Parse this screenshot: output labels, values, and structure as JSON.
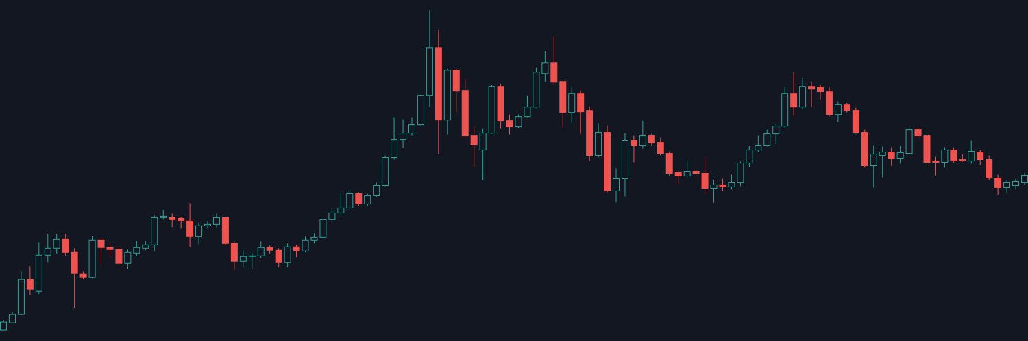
{
  "chart_data": {
    "type": "candlestick",
    "ylim": [
      0,
      500
    ],
    "up_color": "#26a69a",
    "down_color": "#ef5350",
    "open": [
      16,
      27,
      39,
      90,
      73,
      126,
      136,
      149,
      130,
      98,
      93,
      148,
      137,
      134,
      114,
      129,
      136,
      141,
      181,
      181,
      180,
      176,
      153,
      169,
      171,
      181,
      143,
      117,
      124,
      125,
      137,
      133,
      115,
      138,
      132,
      148,
      152,
      178,
      188,
      195,
      216,
      201,
      213,
      228,
      269,
      295,
      305,
      317,
      360,
      430,
      324,
      397,
      367,
      301,
      280,
      305,
      373,
      323,
      314,
      329,
      343,
      392,
      408,
      380,
      335,
      363,
      338,
      272,
      306,
      220,
      238,
      294,
      287,
      301,
      291,
      275,
      247,
      242,
      249,
      246,
      224,
      229,
      226,
      232,
      261,
      280,
      287,
      304,
      315,
      363,
      343,
      373,
      372,
      366,
      332,
      347,
      338,
      306,
      257,
      272,
      277,
      268,
      275,
      310,
      301,
      264,
      262,
      280,
      266,
      264,
      277,
      266,
      239,
      225,
      228,
      232
    ],
    "high": [
      30,
      42,
      102,
      110,
      145,
      157,
      157,
      157,
      136,
      102,
      154,
      150,
      143,
      139,
      134,
      147,
      147,
      184,
      192,
      187,
      182,
      202,
      174,
      176,
      187,
      182,
      146,
      133,
      129,
      146,
      140,
      136,
      143,
      141,
      153,
      158,
      180,
      193,
      217,
      221,
      218,
      216,
      232,
      272,
      328,
      325,
      328,
      361,
      486,
      456,
      399,
      399,
      385,
      314,
      311,
      375,
      377,
      332,
      332,
      360,
      401,
      425,
      447,
      382,
      372,
      367,
      344,
      319,
      316,
      253,
      305,
      301,
      323,
      304,
      298,
      278,
      250,
      265,
      251,
      269,
      236,
      238,
      244,
      263,
      286,
      301,
      310,
      318,
      372,
      394,
      386,
      380,
      376,
      372,
      351,
      349,
      342,
      310,
      287,
      285,
      284,
      286,
      313,
      314,
      303,
      270,
      284,
      284,
      274,
      294,
      280,
      272,
      244,
      236,
      238,
      246
    ],
    "low": [
      14,
      26,
      38,
      68,
      69,
      115,
      128,
      124,
      49,
      91,
      92,
      112,
      124,
      111,
      106,
      125,
      133,
      131,
      178,
      167,
      165,
      138,
      142,
      166,
      167,
      140,
      104,
      108,
      105,
      122,
      128,
      108,
      108,
      123,
      130,
      143,
      149,
      175,
      184,
      194,
      198,
      198,
      211,
      227,
      266,
      283,
      301,
      316,
      343,
      274,
      303,
      335,
      300,
      255,
      236,
      304,
      311,
      303,
      312,
      328,
      342,
      380,
      376,
      314,
      320,
      304,
      264,
      269,
      218,
      203,
      212,
      262,
      282,
      286,
      272,
      242,
      229,
      239,
      242,
      214,
      203,
      220,
      222,
      227,
      255,
      277,
      285,
      289,
      312,
      330,
      340,
      343,
      354,
      329,
      321,
      335,
      304,
      254,
      225,
      240,
      257,
      260,
      273,
      297,
      254,
      243,
      254,
      261,
      263,
      260,
      258,
      236,
      214,
      217,
      222,
      229
    ],
    "close": [
      28,
      39,
      90,
      76,
      126,
      136,
      149,
      130,
      99,
      93,
      148,
      137,
      134,
      114,
      130,
      137,
      141,
      181,
      183,
      178,
      176,
      153,
      169,
      171,
      181,
      143,
      117,
      124,
      125,
      137,
      133,
      115,
      138,
      132,
      148,
      152,
      178,
      188,
      195,
      216,
      201,
      213,
      228,
      269,
      295,
      305,
      317,
      360,
      430,
      324,
      397,
      367,
      301,
      288,
      305,
      373,
      323,
      314,
      329,
      343,
      394,
      408,
      380,
      335,
      363,
      336,
      272,
      306,
      220,
      238,
      294,
      287,
      301,
      291,
      275,
      246,
      242,
      249,
      246,
      224,
      229,
      226,
      232,
      261,
      280,
      287,
      304,
      315,
      363,
      343,
      373,
      370,
      366,
      332,
      347,
      338,
      306,
      257,
      274,
      277,
      268,
      276,
      310,
      301,
      262,
      262,
      280,
      264,
      264,
      278,
      266,
      239,
      225,
      232,
      234,
      243
    ]
  }
}
